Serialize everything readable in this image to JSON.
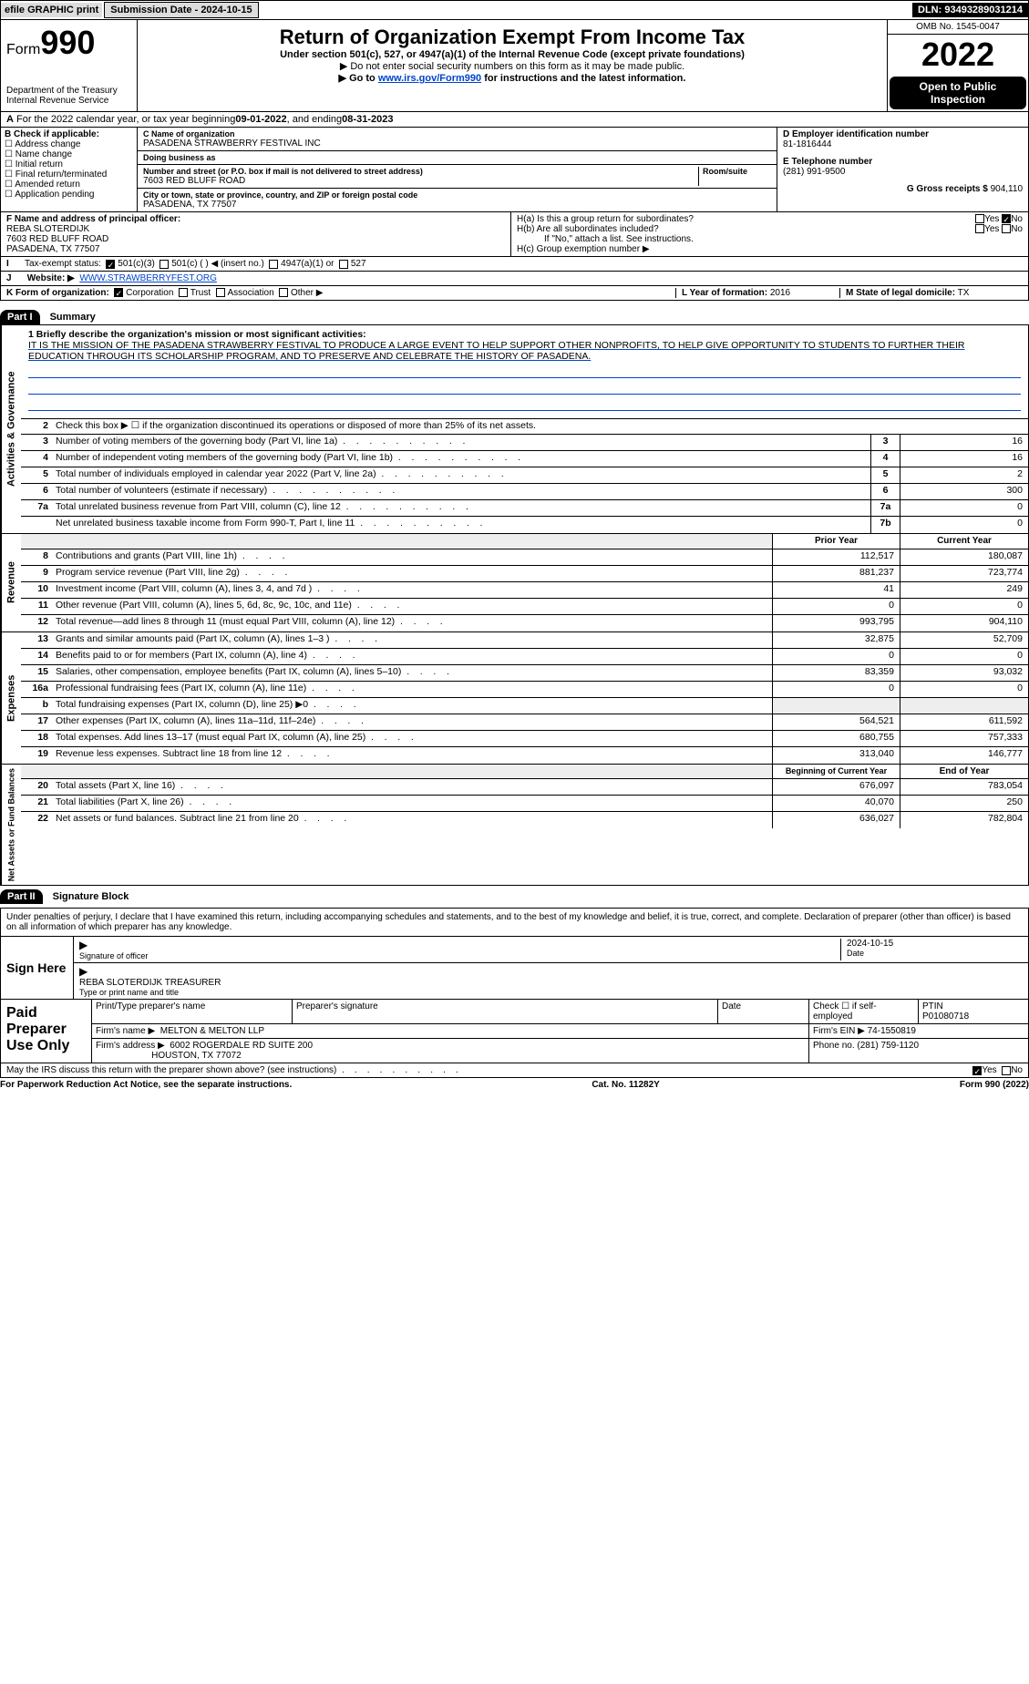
{
  "topbar": {
    "efile": "efile GRAPHIC print",
    "sub_label": "Submission Date - 2024-10-15",
    "dln": "DLN: 93493289031214"
  },
  "header": {
    "form_prefix": "Form",
    "form_no": "990",
    "dept": "Department of the Treasury",
    "irs": "Internal Revenue Service",
    "title": "Return of Organization Exempt From Income Tax",
    "sub1": "Under section 501(c), 527, or 4947(a)(1) of the Internal Revenue Code (except private foundations)",
    "sub2": "▶ Do not enter social security numbers on this form as it may be made public.",
    "sub3_pre": "▶ Go to ",
    "sub3_link": "www.irs.gov/Form990",
    "sub3_post": " for instructions and the latest information.",
    "omb": "OMB No. 1545-0047",
    "year": "2022",
    "opi": "Open to Public Inspection"
  },
  "periodA": {
    "pre": "For the 2022 calendar year, or tax year beginning ",
    "begin": "09-01-2022",
    "mid": " , and ending ",
    "end": "08-31-2023"
  },
  "colB": {
    "hdr": "B Check if applicable:",
    "items": [
      "Address change",
      "Name change",
      "Initial return",
      "Final return/terminated",
      "Amended return",
      "Application pending"
    ]
  },
  "colC": {
    "name_lbl": "C Name of organization",
    "name": "PASADENA STRAWBERRY FESTIVAL INC",
    "dba_lbl": "Doing business as",
    "dba": "",
    "street_lbl": "Number and street (or P.O. box if mail is not delivered to street address)",
    "room_lbl": "Room/suite",
    "street": "7603 RED BLUFF ROAD",
    "city_lbl": "City or town, state or province, country, and ZIP or foreign postal code",
    "city": "PASADENA, TX  77507"
  },
  "colDE": {
    "d_lbl": "D Employer identification number",
    "d_val": "81-1816444",
    "e_lbl": "E Telephone number",
    "e_val": "(281) 991-9500",
    "g_lbl": "G Gross receipts $",
    "g_val": "904,110"
  },
  "sectionF": {
    "lbl": "F Name and address of principal officer:",
    "name": "REBA SLOTERDIJK",
    "addr1": "7603 RED BLUFF ROAD",
    "addr2": "PASADENA, TX  77507"
  },
  "sectionH": {
    "ha_lbl": "H(a)  Is this a group return for subordinates?",
    "hb_lbl": "H(b)  Are all subordinates included?",
    "hb_note": "If \"No,\" attach a list. See instructions.",
    "hc_lbl": "H(c)  Group exemption number ▶",
    "yes": "Yes",
    "no": "No"
  },
  "lineI": {
    "lbl": "Tax-exempt status:",
    "o1": "501(c)(3)",
    "o2": "501(c) (   ) ◀ (insert no.)",
    "o3": "4947(a)(1) or",
    "o4": "527"
  },
  "lineJ": {
    "lbl": "Website: ▶",
    "val": "WWW.STRAWBERRYFEST.ORG"
  },
  "lineK": {
    "lbl": "K Form of organization:",
    "o1": "Corporation",
    "o2": "Trust",
    "o3": "Association",
    "o4": "Other ▶"
  },
  "lineL": {
    "lbl": "L Year of formation:",
    "val": "2016"
  },
  "lineM": {
    "lbl": "M State of legal domicile:",
    "val": "TX"
  },
  "parts": {
    "p1": "Part I",
    "p1t": "Summary",
    "p2": "Part II",
    "p2t": "Signature Block"
  },
  "vlabels": {
    "gov": "Activities & Governance",
    "rev": "Revenue",
    "exp": "Expenses",
    "net": "Net Assets or Fund Balances"
  },
  "mission": {
    "lbl": "1  Briefly describe the organization's mission or most significant activities:",
    "text": "IT IS THE MISSION OF THE PASADENA STRAWBERRY FESTIVAL TO PRODUCE A LARGE EVENT TO HELP SUPPORT OTHER NONPROFITS, TO HELP GIVE OPPORTUNITY TO STUDENTS TO FURTHER THEIR EDUCATION THROUGH ITS SCHOLARSHIP PROGRAM, AND TO PRESERVE AND CELEBRATE THE HISTORY OF PASADENA."
  },
  "line2": "Check this box ▶ ☐  if the organization discontinued its operations or disposed of more than 25% of its net assets.",
  "gov_lines": [
    {
      "n": "3",
      "d": "Number of voting members of the governing body (Part VI, line 1a)",
      "b": "3",
      "v": "16"
    },
    {
      "n": "4",
      "d": "Number of independent voting members of the governing body (Part VI, line 1b)",
      "b": "4",
      "v": "16"
    },
    {
      "n": "5",
      "d": "Total number of individuals employed in calendar year 2022 (Part V, line 2a)",
      "b": "5",
      "v": "2"
    },
    {
      "n": "6",
      "d": "Total number of volunteers (estimate if necessary)",
      "b": "6",
      "v": "300"
    },
    {
      "n": "7a",
      "d": "Total unrelated business revenue from Part VIII, column (C), line 12",
      "b": "7a",
      "v": "0"
    },
    {
      "n": "",
      "d": "Net unrelated business taxable income from Form 990-T, Part I, line 11",
      "b": "7b",
      "v": "0"
    }
  ],
  "two_col_hdr": {
    "prior": "Prior Year",
    "current": "Current Year"
  },
  "rev_lines": [
    {
      "n": "8",
      "d": "Contributions and grants (Part VIII, line 1h)",
      "p": "112,517",
      "c": "180,087"
    },
    {
      "n": "9",
      "d": "Program service revenue (Part VIII, line 2g)",
      "p": "881,237",
      "c": "723,774"
    },
    {
      "n": "10",
      "d": "Investment income (Part VIII, column (A), lines 3, 4, and 7d )",
      "p": "41",
      "c": "249"
    },
    {
      "n": "11",
      "d": "Other revenue (Part VIII, column (A), lines 5, 6d, 8c, 9c, 10c, and 11e)",
      "p": "0",
      "c": "0"
    },
    {
      "n": "12",
      "d": "Total revenue—add lines 8 through 11 (must equal Part VIII, column (A), line 12)",
      "p": "993,795",
      "c": "904,110"
    }
  ],
  "exp_lines": [
    {
      "n": "13",
      "d": "Grants and similar amounts paid (Part IX, column (A), lines 1–3 )",
      "p": "32,875",
      "c": "52,709"
    },
    {
      "n": "14",
      "d": "Benefits paid to or for members (Part IX, column (A), line 4)",
      "p": "0",
      "c": "0"
    },
    {
      "n": "15",
      "d": "Salaries, other compensation, employee benefits (Part IX, column (A), lines 5–10)",
      "p": "83,359",
      "c": "93,032"
    },
    {
      "n": "16a",
      "d": "Professional fundraising fees (Part IX, column (A), line 11e)",
      "p": "0",
      "c": "0"
    },
    {
      "n": "b",
      "d": "Total fundraising expenses (Part IX, column (D), line 25) ▶0",
      "p": "",
      "c": "",
      "shade": true
    },
    {
      "n": "17",
      "d": "Other expenses (Part IX, column (A), lines 11a–11d, 11f–24e)",
      "p": "564,521",
      "c": "611,592"
    },
    {
      "n": "18",
      "d": "Total expenses. Add lines 13–17 (must equal Part IX, column (A), line 25)",
      "p": "680,755",
      "c": "757,333"
    },
    {
      "n": "19",
      "d": "Revenue less expenses. Subtract line 18 from line 12",
      "p": "313,040",
      "c": "146,777"
    }
  ],
  "net_hdr": {
    "prior": "Beginning of Current Year",
    "current": "End of Year"
  },
  "net_lines": [
    {
      "n": "20",
      "d": "Total assets (Part X, line 16)",
      "p": "676,097",
      "c": "783,054"
    },
    {
      "n": "21",
      "d": "Total liabilities (Part X, line 26)",
      "p": "40,070",
      "c": "250"
    },
    {
      "n": "22",
      "d": "Net assets or fund balances. Subtract line 21 from line 20",
      "p": "636,027",
      "c": "782,804"
    }
  ],
  "sig": {
    "intro": "Under penalties of perjury, I declare that I have examined this return, including accompanying schedules and statements, and to the best of my knowledge and belief, it is true, correct, and complete. Declaration of preparer (other than officer) is based on all information of which preparer has any knowledge.",
    "sign_here": "Sign Here",
    "sig_of_officer": "Signature of officer",
    "date": "2024-10-15",
    "date_lbl": "Date",
    "officer_name": "REBA SLOTERDIJK  TREASURER",
    "type_lbl": "Type or print name and title"
  },
  "prep": {
    "label": "Paid Preparer Use Only",
    "h1": "Print/Type preparer's name",
    "h2": "Preparer's signature",
    "h3": "Date",
    "h4_pre": "Check ☐ if self-employed",
    "h5": "PTIN",
    "ptin": "P01080718",
    "firm_lbl": "Firm's name    ▶",
    "firm": "MELTON & MELTON LLP",
    "ein_lbl": "Firm's EIN ▶",
    "ein": "74-1550819",
    "addr_lbl": "Firm's address ▶",
    "addr1": "6002 ROGERDALE RD SUITE 200",
    "addr2": "HOUSTON, TX  77072",
    "phone_lbl": "Phone no.",
    "phone": "(281) 759-1120"
  },
  "may_irs": {
    "q": "May the IRS discuss this return with the preparer shown above? (see instructions)",
    "yes": "Yes",
    "no": "No"
  },
  "footer": {
    "pra": "For Paperwork Reduction Act Notice, see the separate instructions.",
    "cat": "Cat. No. 11282Y",
    "form": "Form 990 (2022)"
  },
  "colors": {
    "link": "#0044cc",
    "shade": "#eeeeee"
  }
}
